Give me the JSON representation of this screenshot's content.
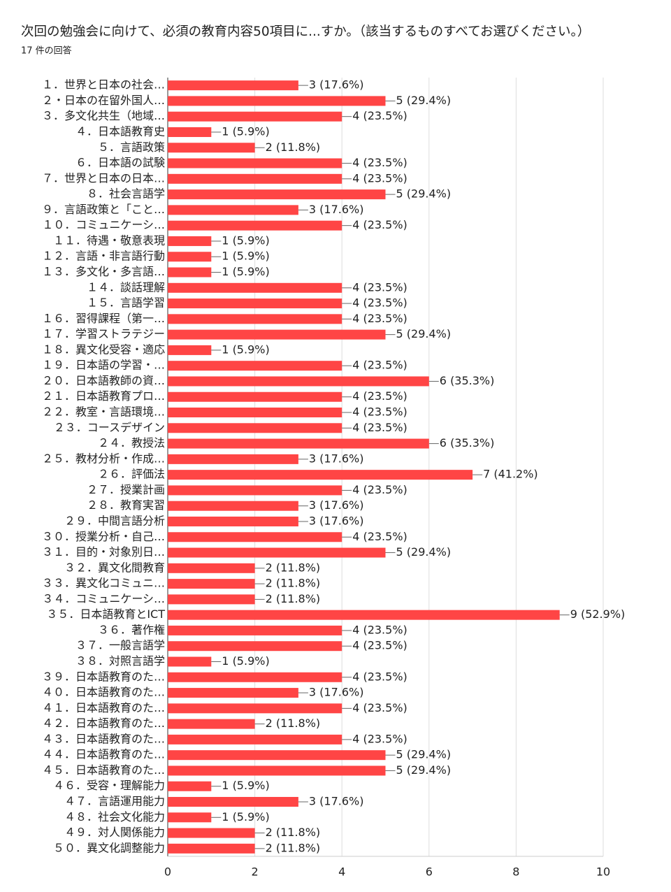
{
  "chart_data": {
    "type": "bar",
    "orientation": "horizontal",
    "title": "次回の勉強会に向けて、必須の教育内容50項目に...すか。（該当するものすべてお選びください。）",
    "subtitle": "17 件の回答",
    "categories": [
      "１．世界と日本の社会…",
      "２・日本の在留外国人…",
      "３．多文化共生（地域…",
      "４．日本語教育史",
      "５．言語政策",
      "６．日本語の試験",
      "７．世界と日本の日本…",
      "８．社会言語学",
      "９．言語政策と「こと…",
      "１０．コミュニケーシ…",
      "１１．待遇・敬意表現",
      "１２．言語・非言語行動",
      "１３．多文化・多言語…",
      "１４．談話理解",
      "１５．言語学習",
      "１６．習得課程（第一…",
      "１７．学習ストラテジー",
      "１８．異文化受容・適応",
      "１９．日本語の学習・…",
      "２０．日本語教師の資…",
      "２１．日本語教育プロ…",
      "２２．教室・言語環境…",
      "２３．コースデザイン",
      "２４．教授法",
      "２５．教材分析・作成…",
      "２６．評価法",
      "２７．授業計画",
      "２８．教育実習",
      "２９．中間言語分析",
      "３０．授業分析・自己…",
      "３１．目的・対象別日…",
      "３２．異文化間教育",
      "３３．異文化コミュニ…",
      "３４．コミュニケーシ…",
      "３５．日本語教育とICT",
      "３６．著作権",
      "３７．一般言語学",
      "３８．対照言語学",
      "３９．日本語教育のた…",
      "４０．日本語教育のた…",
      "４１．日本語教育のた…",
      "４２．日本語教育のた…",
      "４３．日本語教育のた…",
      "４４．日本語教育のた…",
      "４５．日本語教育のた…",
      "４６．受容・理解能力",
      "４７．言語運用能力",
      "４８．社会文化能力",
      "４９．対人関係能力",
      "５０．異文化調整能力"
    ],
    "values": [
      3,
      5,
      4,
      1,
      2,
      4,
      4,
      5,
      3,
      4,
      1,
      1,
      1,
      4,
      4,
      4,
      5,
      1,
      4,
      6,
      4,
      4,
      4,
      6,
      3,
      7,
      4,
      3,
      3,
      4,
      5,
      2,
      2,
      2,
      9,
      4,
      4,
      1,
      4,
      3,
      4,
      2,
      4,
      5,
      5,
      1,
      3,
      1,
      2,
      2
    ],
    "value_labels": [
      "3 (17.6%)",
      "5 (29.4%)",
      "4 (23.5%)",
      "1 (5.9%)",
      "2 (11.8%)",
      "4 (23.5%)",
      "4 (23.5%)",
      "5 (29.4%)",
      "3 (17.6%)",
      "4 (23.5%)",
      "1 (5.9%)",
      "1 (5.9%)",
      "1 (5.9%)",
      "4 (23.5%)",
      "4 (23.5%)",
      "4 (23.5%)",
      "5 (29.4%)",
      "1 (5.9%)",
      "4 (23.5%)",
      "6 (35.3%)",
      "4 (23.5%)",
      "4 (23.5%)",
      "4 (23.5%)",
      "6 (35.3%)",
      "3 (17.6%)",
      "7 (41.2%)",
      "4 (23.5%)",
      "3 (17.6%)",
      "3 (17.6%)",
      "4 (23.5%)",
      "5 (29.4%)",
      "2 (11.8%)",
      "2 (11.8%)",
      "2 (11.8%)",
      "9 (52.9%)",
      "4 (23.5%)",
      "4 (23.5%)",
      "1 (5.9%)",
      "4 (23.5%)",
      "3 (17.6%)",
      "4 (23.5%)",
      "2 (11.8%)",
      "4 (23.5%)",
      "5 (29.4%)",
      "5 (29.4%)",
      "1 (5.9%)",
      "3 (17.6%)",
      "1 (5.9%)",
      "2 (11.8%)",
      "2 (11.8%)"
    ],
    "color": "#ff4545",
    "xlim": [
      0,
      10
    ],
    "xticks": [
      0,
      2,
      4,
      6,
      8,
      10
    ],
    "grid": true
  }
}
